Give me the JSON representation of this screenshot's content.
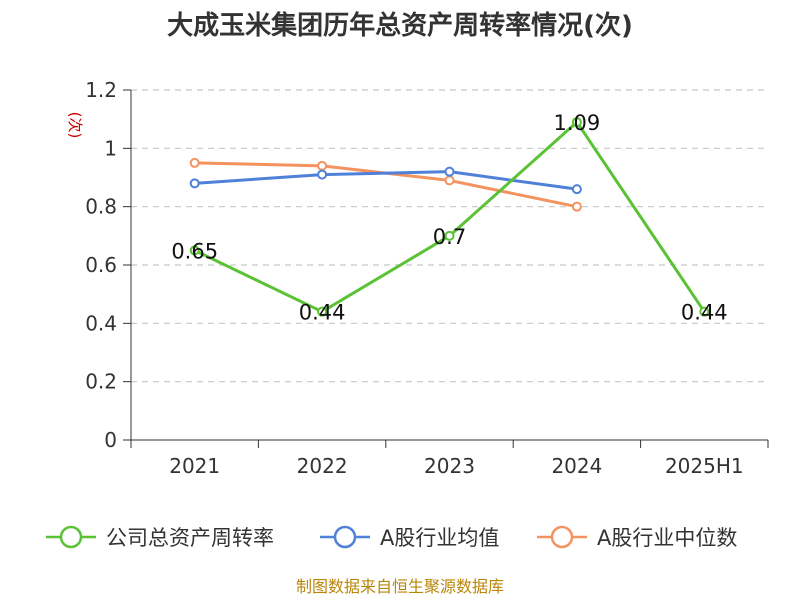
{
  "chart_data": {
    "type": "line",
    "title": "大成玉米集团历年总资产周转率情况(次)",
    "ylabel": "(次)",
    "xlabel": "",
    "categories": [
      "2021",
      "2022",
      "2023",
      "2024",
      "2025H1"
    ],
    "ylim": [
      0,
      1.2
    ],
    "yticks": [
      "0",
      "0.2",
      "0.4",
      "0.6",
      "0.8",
      "1",
      "1.2"
    ],
    "grid": true,
    "legend_position": "bottom",
    "series": [
      {
        "name": "公司总资产周转率",
        "color": "#5bc236",
        "values": [
          0.65,
          0.44,
          0.7,
          1.09,
          0.44
        ],
        "labels": [
          "0.65",
          "0.44",
          "0.7",
          "1.09",
          "0.44"
        ]
      },
      {
        "name": "A股行业均值",
        "color": "#4f81d9",
        "values": [
          0.88,
          0.91,
          0.92,
          0.86,
          null
        ]
      },
      {
        "name": "A股行业中位数",
        "color": "#f4935f",
        "values": [
          0.95,
          0.94,
          0.89,
          0.8,
          null
        ]
      }
    ]
  },
  "footer": {
    "source": "制图数据来自恒生聚源数据库"
  }
}
